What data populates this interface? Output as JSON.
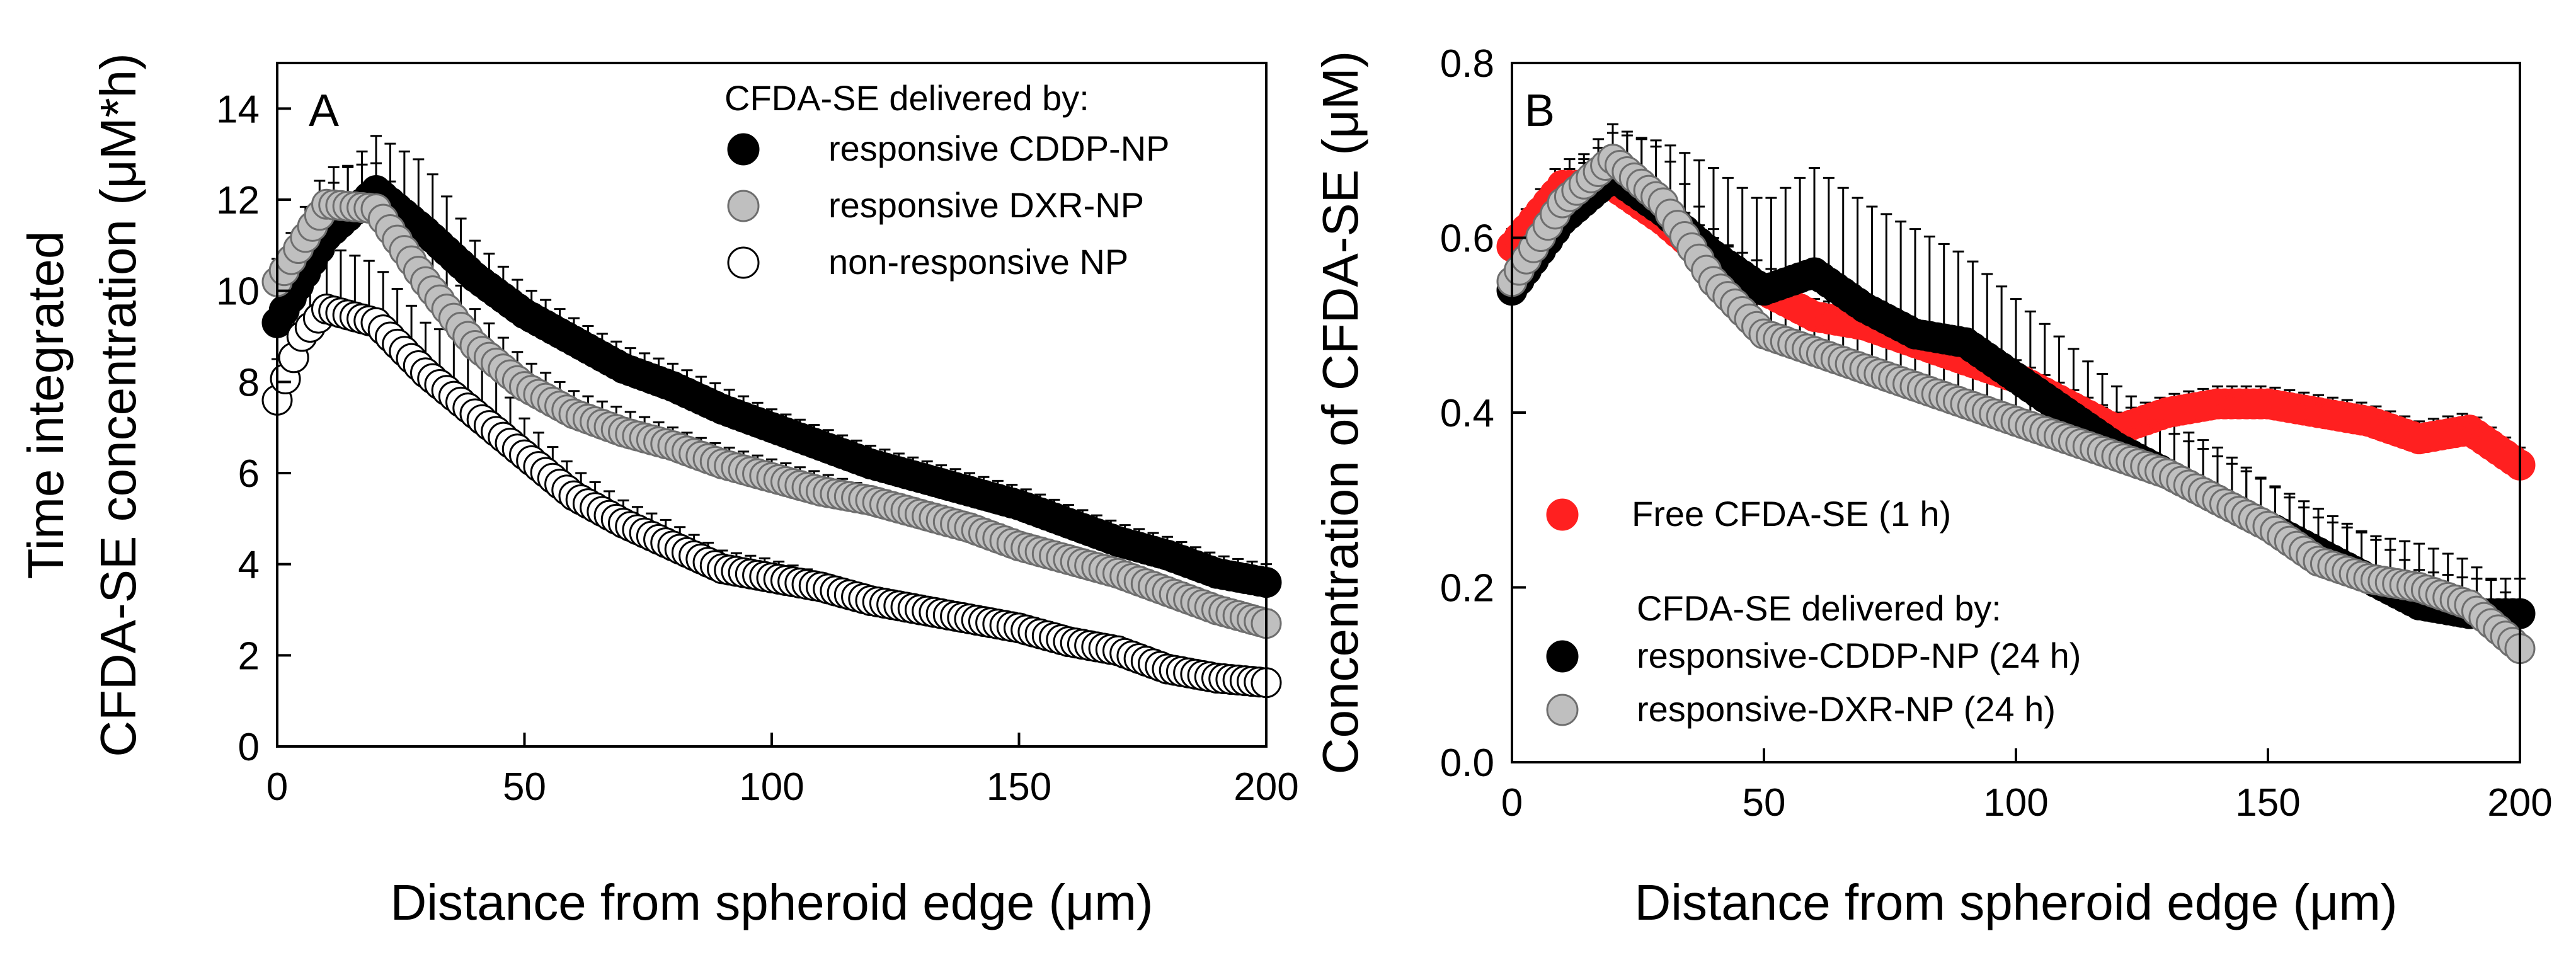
{
  "chart_data": [
    {
      "type": "scatter",
      "panel_label": "A",
      "xlabel": "Distance from spheroid edge (μm)",
      "ylabel_lines": [
        "Time integrated",
        "CFDA-SE concentration (μM*h)"
      ],
      "xlim": [
        0,
        200
      ],
      "ylim": [
        0,
        15
      ],
      "xticks": [
        0,
        50,
        100,
        150,
        200
      ],
      "yticks": [
        0,
        2,
        4,
        6,
        8,
        10,
        12,
        14
      ],
      "legend_title": "CFDA-SE delivered by:",
      "legend_position": "top-right",
      "series": [
        {
          "name": "responsive CDDP-NP",
          "color": "#000000",
          "fill": "#000000",
          "x": [
            0,
            10,
            20,
            30,
            40,
            50,
            60,
            70,
            80,
            90,
            100,
            110,
            120,
            130,
            140,
            150,
            160,
            170,
            180,
            190,
            200
          ],
          "y": [
            9.3,
            11.2,
            12.2,
            11.3,
            10.3,
            9.5,
            8.9,
            8.3,
            7.9,
            7.4,
            7.0,
            6.6,
            6.2,
            5.9,
            5.6,
            5.3,
            4.9,
            4.5,
            4.2,
            3.8,
            3.6
          ],
          "err": [
            0.6,
            1.0,
            1.2,
            1.5,
            0.8,
            0.6,
            0.5,
            0.5,
            0.5,
            0.5,
            0.4,
            0.4,
            0.4,
            0.4,
            0.4,
            0.4,
            0.4,
            0.4,
            0.4,
            0.4,
            0.4
          ]
        },
        {
          "name": "responsive DXR-NP",
          "color": "#808080",
          "fill": "#bfbfbf",
          "x": [
            0,
            10,
            20,
            30,
            40,
            50,
            60,
            70,
            80,
            90,
            100,
            110,
            120,
            130,
            140,
            150,
            160,
            170,
            180,
            190,
            200
          ],
          "y": [
            10.2,
            11.9,
            11.8,
            10.2,
            8.8,
            7.9,
            7.3,
            6.9,
            6.6,
            6.2,
            5.9,
            5.6,
            5.4,
            5.1,
            4.8,
            4.4,
            4.1,
            3.8,
            3.4,
            3.0,
            2.7
          ],
          "err": [
            0.5,
            0.8,
            1.0,
            1.2,
            0.8,
            0.6,
            0.5,
            0.5,
            0.4,
            0.4,
            0.4,
            0.4,
            0.3,
            0.3,
            0.3,
            0.3,
            0.3,
            0.3,
            0.3,
            0.3,
            0.3
          ]
        },
        {
          "name": "non-responsive NP",
          "color": "#000000",
          "fill": "#ffffff",
          "x": [
            0,
            5,
            10,
            20,
            30,
            40,
            50,
            60,
            70,
            80,
            90,
            100,
            110,
            120,
            130,
            140,
            150,
            160,
            170,
            180,
            190,
            200
          ],
          "y": [
            7.6,
            9.0,
            9.6,
            9.3,
            8.2,
            7.3,
            6.4,
            5.5,
            4.9,
            4.4,
            3.9,
            3.7,
            3.5,
            3.2,
            3.0,
            2.8,
            2.6,
            2.3,
            2.1,
            1.7,
            1.5,
            1.4
          ],
          "err": [
            0.9,
            1.2,
            1.4,
            1.3,
            1.1,
            1.5,
            0.8,
            0.6,
            0.5,
            0.5,
            0.4,
            0.4,
            0.3,
            0.3,
            0.3,
            0.3,
            0.3,
            0.3,
            0.3,
            0.2,
            0.2,
            0.2
          ]
        }
      ]
    },
    {
      "type": "scatter",
      "panel_label": "B",
      "xlabel": "Distance from spheroid edge (μm)",
      "ylabel_lines": [
        "Concentration of CFDA-SE (μM)"
      ],
      "xlim": [
        0,
        200
      ],
      "ylim": [
        0,
        0.8
      ],
      "xticks": [
        0,
        50,
        100,
        150,
        200
      ],
      "yticks": [
        0.0,
        0.2,
        0.4,
        0.6,
        0.8
      ],
      "ytick_labels": [
        "0.0",
        "0.2",
        "0.4",
        "0.6",
        "0.8"
      ],
      "legend_title": "CFDA-SE delivered by:",
      "legend_position": "bottom-left",
      "free_label": "Free CFDA-SE (1 h)",
      "series": [
        {
          "name": "Free CFDA-SE (1 h)",
          "color": "#ff2020",
          "fill": "#ff2020",
          "text_color": "#ff2020",
          "x": [
            0,
            10,
            20,
            30,
            40,
            50,
            60,
            70,
            80,
            90,
            100,
            110,
            120,
            130,
            140,
            150,
            160,
            170,
            180,
            190,
            200
          ],
          "y": [
            0.59,
            0.66,
            0.66,
            0.62,
            0.57,
            0.54,
            0.51,
            0.5,
            0.48,
            0.46,
            0.44,
            0.41,
            0.38,
            0.4,
            0.41,
            0.41,
            0.4,
            0.39,
            0.37,
            0.38,
            0.34
          ],
          "err": [
            0.02,
            0.03,
            0.03,
            0.03,
            0.03,
            0.03,
            0.02,
            0.02,
            0.02,
            0.02,
            0.02,
            0.02,
            0.02,
            0.02,
            0.02,
            0.02,
            0.02,
            0.02,
            0.02,
            0.02,
            0.02
          ]
        },
        {
          "name": "responsive-CDDP-NP (24 h)",
          "color": "#000000",
          "fill": "#000000",
          "text_color": "#000000",
          "x": [
            0,
            10,
            20,
            30,
            40,
            50,
            60,
            70,
            80,
            90,
            100,
            110,
            120,
            130,
            140,
            150,
            160,
            170,
            180,
            190,
            200
          ],
          "y": [
            0.54,
            0.62,
            0.67,
            0.63,
            0.58,
            0.54,
            0.56,
            0.52,
            0.49,
            0.48,
            0.44,
            0.4,
            0.36,
            0.33,
            0.3,
            0.27,
            0.24,
            0.21,
            0.18,
            0.17,
            0.17
          ],
          "err": [
            0.03,
            0.04,
            0.05,
            0.08,
            0.1,
            0.1,
            0.12,
            0.12,
            0.12,
            0.1,
            0.09,
            0.08,
            0.07,
            0.06,
            0.06,
            0.05,
            0.05,
            0.05,
            0.04,
            0.04,
            0.04
          ]
        },
        {
          "name": "responsive-DXR-NP (24 h)",
          "color": "#808080",
          "fill": "#bfbfbf",
          "text_color": "#808080",
          "x": [
            0,
            10,
            20,
            30,
            40,
            50,
            60,
            70,
            80,
            90,
            100,
            110,
            120,
            130,
            140,
            150,
            160,
            170,
            180,
            190,
            200
          ],
          "y": [
            0.55,
            0.64,
            0.69,
            0.64,
            0.55,
            0.49,
            0.47,
            0.45,
            0.43,
            0.41,
            0.39,
            0.37,
            0.35,
            0.33,
            0.3,
            0.27,
            0.23,
            0.21,
            0.2,
            0.18,
            0.13
          ],
          "err": [
            0.02,
            0.03,
            0.04,
            0.06,
            0.06,
            0.05,
            0.05,
            0.05,
            0.05,
            0.05,
            0.05,
            0.05,
            0.05,
            0.05,
            0.05,
            0.05,
            0.05,
            0.05,
            0.05,
            0.05,
            0.05
          ]
        }
      ]
    }
  ]
}
